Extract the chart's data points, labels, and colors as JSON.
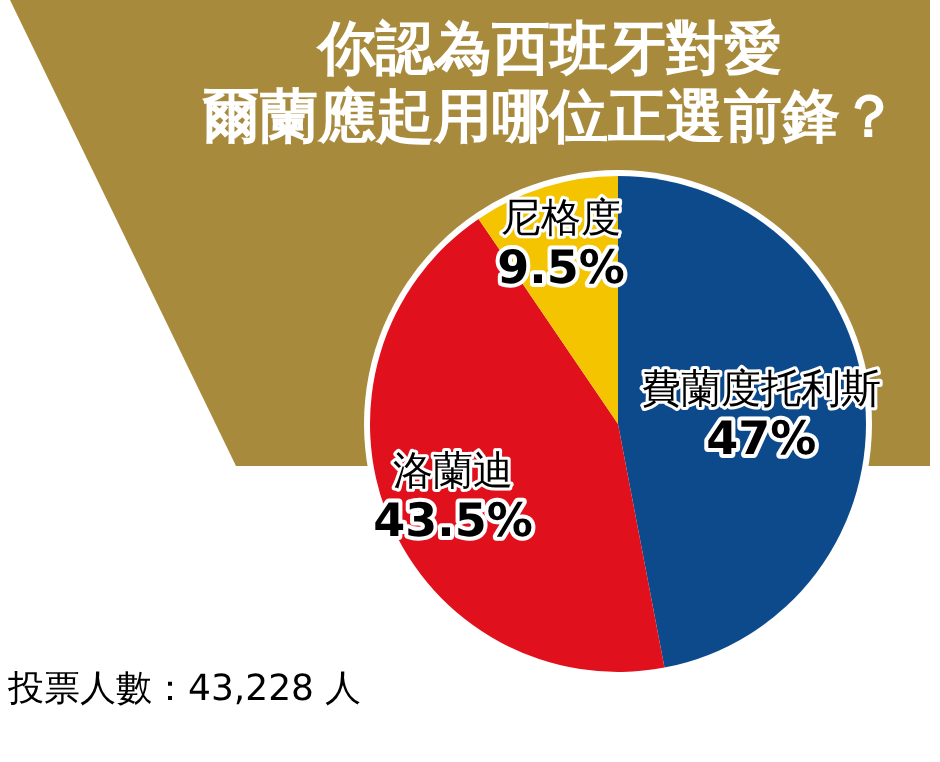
{
  "chart_data": {
    "type": "pie",
    "title": "你認為西班牙對愛爾蘭應起用哪位正選前鋒？",
    "categories": [
      "費蘭度托利斯",
      "洛蘭迪",
      "尼格度"
    ],
    "values": [
      47,
      43.5,
      9.5
    ],
    "value_labels": [
      "47%",
      "43.5%",
      "9.5%"
    ],
    "colors": [
      "#0d4a8c",
      "#e0101c",
      "#f5c400"
    ],
    "annotations": [
      "投票人數：43,228 人"
    ]
  }
}
